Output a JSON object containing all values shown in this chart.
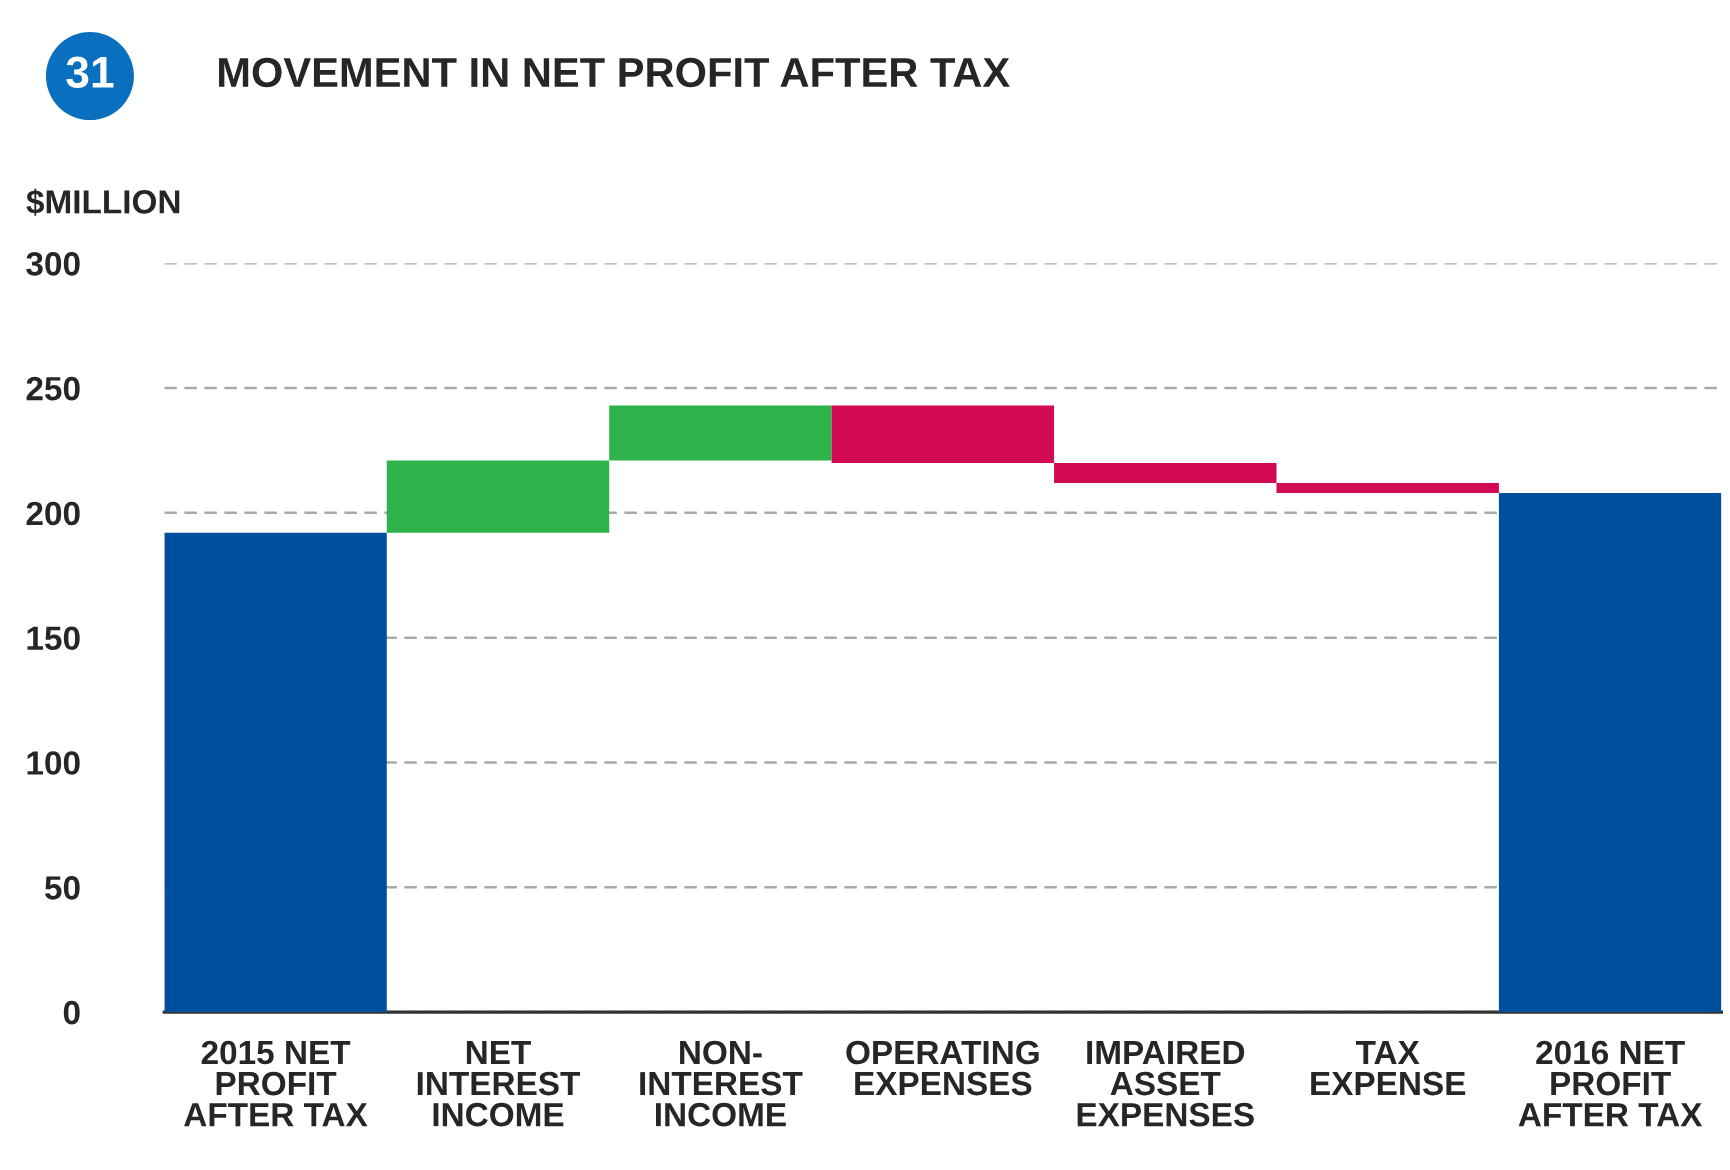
{
  "chart_data": {
    "type": "bar",
    "title": "MOVEMENT IN NET PROFIT AFTER TAX",
    "ylabel": "$MILLION",
    "annotations": [
      "31"
    ],
    "categories": [
      "2015 NET\nPROFIT\nAFTER TAX",
      "NET\nINTEREST\nINCOME",
      "NON-\nINTEREST\nINCOME",
      "OPERATING\nEXPENSES",
      "IMPAIRED\nASSET\nEXPENSES",
      "TAX\nEXPENSE",
      "2016 NET\nPROFIT\nAFTER TAX"
    ],
    "values": [
      192,
      29,
      22,
      -23,
      -8,
      -4,
      208
    ],
    "base": [
      0,
      192,
      221,
      243,
      220,
      212,
      0
    ],
    "colors": [
      "#004f9f",
      "#2db34a",
      "#2db34a",
      "#d10a52",
      "#d10a52",
      "#d10a52",
      "#004f9f"
    ],
    "ylim": [
      0,
      300
    ],
    "yticks": [
      0,
      50,
      100,
      150,
      200,
      250,
      300
    ],
    "grid": "y"
  }
}
